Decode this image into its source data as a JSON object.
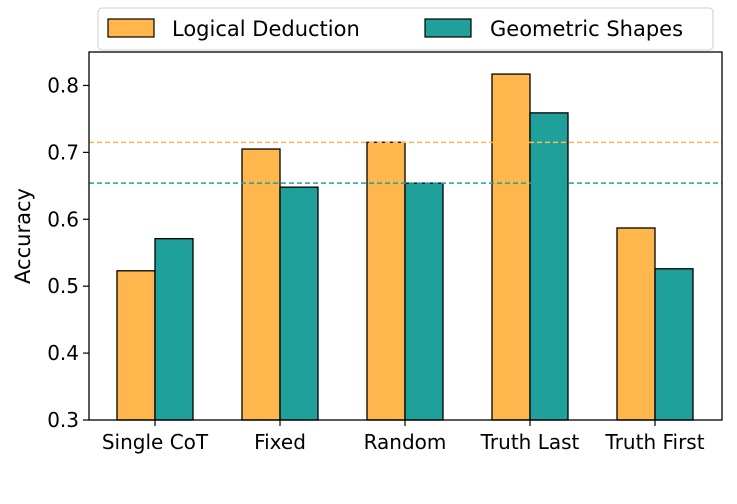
{
  "chart_data": {
    "type": "bar",
    "title": "",
    "xlabel": "",
    "ylabel": "Accuracy",
    "ylim": [
      0.3,
      0.85
    ],
    "yticks": [
      "0.3",
      "0.4",
      "0.5",
      "0.6",
      "0.7",
      "0.8"
    ],
    "categories": [
      "Single CoT",
      "Fixed",
      "Random",
      "Truth Last",
      "Truth First"
    ],
    "series": [
      {
        "name": "Logical Deduction",
        "color": "#FFB74D",
        "values": [
          0.523,
          0.705,
          0.715,
          0.817,
          0.587
        ]
      },
      {
        "name": "Geometric Shapes",
        "color": "#20A09A",
        "values": [
          0.571,
          0.648,
          0.654,
          0.759,
          0.526
        ]
      }
    ],
    "reference_lines": [
      {
        "series": "Logical Deduction",
        "value": 0.715,
        "color": "#FFB74D",
        "style": "dashed"
      },
      {
        "series": "Geometric Shapes",
        "value": 0.654,
        "color": "#20A09A",
        "style": "dashed"
      }
    ],
    "legend": {
      "placement": "top-center",
      "columns": 2
    },
    "grid": false
  }
}
